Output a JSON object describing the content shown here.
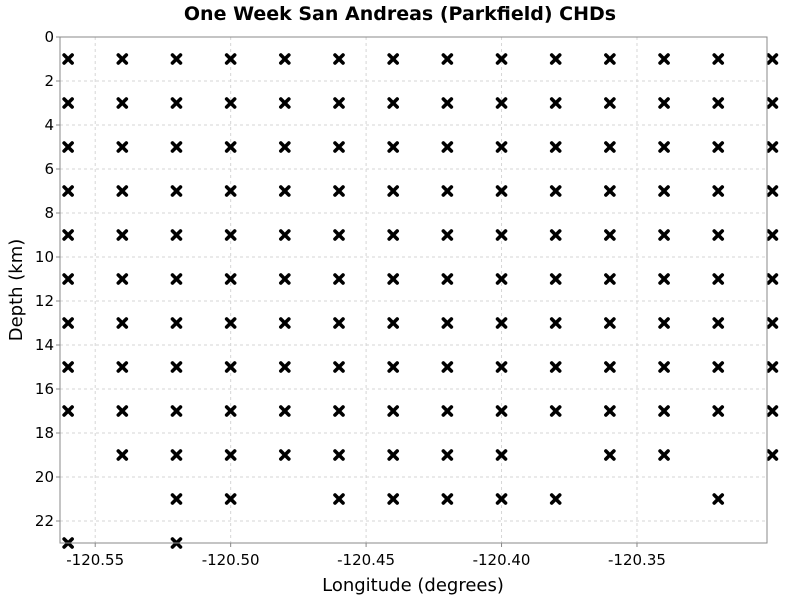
{
  "chart_data": {
    "type": "scatter",
    "title": "One Week San Andreas (Parkfield) CHDs",
    "xlabel": "Longitude (degrees)",
    "ylabel": "Depth (km)",
    "xlim": [
      -120.563,
      -120.302
    ],
    "ylim": [
      0,
      23
    ],
    "y_inverted": true,
    "grid": true,
    "x_ticks": [
      -120.55,
      -120.5,
      -120.45,
      -120.4,
      -120.35
    ],
    "x_tick_labels": [
      "-120.55",
      "-120.50",
      "-120.45",
      "-120.40",
      "-120.35"
    ],
    "y_ticks": [
      0,
      2,
      4,
      6,
      8,
      10,
      12,
      14,
      16,
      18,
      20,
      22
    ],
    "y_tick_labels": [
      "0",
      "2",
      "4",
      "6",
      "8",
      "10",
      "12",
      "14",
      "16",
      "18",
      "20",
      "22"
    ],
    "marker": "x",
    "marker_color": "#000000",
    "points": [
      [
        -120.56,
        1
      ],
      [
        -120.54,
        1
      ],
      [
        -120.52,
        1
      ],
      [
        -120.5,
        1
      ],
      [
        -120.48,
        1
      ],
      [
        -120.46,
        1
      ],
      [
        -120.44,
        1
      ],
      [
        -120.42,
        1
      ],
      [
        -120.4,
        1
      ],
      [
        -120.38,
        1
      ],
      [
        -120.36,
        1
      ],
      [
        -120.34,
        1
      ],
      [
        -120.32,
        1
      ],
      [
        -120.3,
        1
      ],
      [
        -120.56,
        3
      ],
      [
        -120.54,
        3
      ],
      [
        -120.52,
        3
      ],
      [
        -120.5,
        3
      ],
      [
        -120.48,
        3
      ],
      [
        -120.46,
        3
      ],
      [
        -120.44,
        3
      ],
      [
        -120.42,
        3
      ],
      [
        -120.4,
        3
      ],
      [
        -120.38,
        3
      ],
      [
        -120.36,
        3
      ],
      [
        -120.34,
        3
      ],
      [
        -120.32,
        3
      ],
      [
        -120.3,
        3
      ],
      [
        -120.56,
        5
      ],
      [
        -120.54,
        5
      ],
      [
        -120.52,
        5
      ],
      [
        -120.5,
        5
      ],
      [
        -120.48,
        5
      ],
      [
        -120.46,
        5
      ],
      [
        -120.44,
        5
      ],
      [
        -120.42,
        5
      ],
      [
        -120.4,
        5
      ],
      [
        -120.38,
        5
      ],
      [
        -120.36,
        5
      ],
      [
        -120.34,
        5
      ],
      [
        -120.32,
        5
      ],
      [
        -120.3,
        5
      ],
      [
        -120.56,
        7
      ],
      [
        -120.54,
        7
      ],
      [
        -120.52,
        7
      ],
      [
        -120.5,
        7
      ],
      [
        -120.48,
        7
      ],
      [
        -120.46,
        7
      ],
      [
        -120.44,
        7
      ],
      [
        -120.42,
        7
      ],
      [
        -120.4,
        7
      ],
      [
        -120.38,
        7
      ],
      [
        -120.36,
        7
      ],
      [
        -120.34,
        7
      ],
      [
        -120.32,
        7
      ],
      [
        -120.3,
        7
      ],
      [
        -120.56,
        9
      ],
      [
        -120.54,
        9
      ],
      [
        -120.52,
        9
      ],
      [
        -120.5,
        9
      ],
      [
        -120.48,
        9
      ],
      [
        -120.46,
        9
      ],
      [
        -120.44,
        9
      ],
      [
        -120.42,
        9
      ],
      [
        -120.4,
        9
      ],
      [
        -120.38,
        9
      ],
      [
        -120.36,
        9
      ],
      [
        -120.34,
        9
      ],
      [
        -120.32,
        9
      ],
      [
        -120.3,
        9
      ],
      [
        -120.56,
        11
      ],
      [
        -120.54,
        11
      ],
      [
        -120.52,
        11
      ],
      [
        -120.5,
        11
      ],
      [
        -120.48,
        11
      ],
      [
        -120.46,
        11
      ],
      [
        -120.44,
        11
      ],
      [
        -120.42,
        11
      ],
      [
        -120.4,
        11
      ],
      [
        -120.38,
        11
      ],
      [
        -120.36,
        11
      ],
      [
        -120.34,
        11
      ],
      [
        -120.32,
        11
      ],
      [
        -120.3,
        11
      ],
      [
        -120.56,
        13
      ],
      [
        -120.54,
        13
      ],
      [
        -120.52,
        13
      ],
      [
        -120.5,
        13
      ],
      [
        -120.48,
        13
      ],
      [
        -120.46,
        13
      ],
      [
        -120.44,
        13
      ],
      [
        -120.42,
        13
      ],
      [
        -120.4,
        13
      ],
      [
        -120.38,
        13
      ],
      [
        -120.36,
        13
      ],
      [
        -120.34,
        13
      ],
      [
        -120.32,
        13
      ],
      [
        -120.3,
        13
      ],
      [
        -120.56,
        15
      ],
      [
        -120.54,
        15
      ],
      [
        -120.52,
        15
      ],
      [
        -120.5,
        15
      ],
      [
        -120.48,
        15
      ],
      [
        -120.46,
        15
      ],
      [
        -120.44,
        15
      ],
      [
        -120.42,
        15
      ],
      [
        -120.4,
        15
      ],
      [
        -120.38,
        15
      ],
      [
        -120.36,
        15
      ],
      [
        -120.34,
        15
      ],
      [
        -120.32,
        15
      ],
      [
        -120.3,
        15
      ],
      [
        -120.56,
        17
      ],
      [
        -120.54,
        17
      ],
      [
        -120.52,
        17
      ],
      [
        -120.5,
        17
      ],
      [
        -120.48,
        17
      ],
      [
        -120.46,
        17
      ],
      [
        -120.44,
        17
      ],
      [
        -120.42,
        17
      ],
      [
        -120.4,
        17
      ],
      [
        -120.38,
        17
      ],
      [
        -120.36,
        17
      ],
      [
        -120.34,
        17
      ],
      [
        -120.32,
        17
      ],
      [
        -120.3,
        17
      ],
      [
        -120.54,
        19
      ],
      [
        -120.52,
        19
      ],
      [
        -120.5,
        19
      ],
      [
        -120.48,
        19
      ],
      [
        -120.46,
        19
      ],
      [
        -120.44,
        19
      ],
      [
        -120.42,
        19
      ],
      [
        -120.4,
        19
      ],
      [
        -120.36,
        19
      ],
      [
        -120.34,
        19
      ],
      [
        -120.3,
        19
      ],
      [
        -120.52,
        21
      ],
      [
        -120.5,
        21
      ],
      [
        -120.46,
        21
      ],
      [
        -120.44,
        21
      ],
      [
        -120.42,
        21
      ],
      [
        -120.4,
        21
      ],
      [
        -120.38,
        21
      ],
      [
        -120.32,
        21
      ],
      [
        -120.56,
        23
      ],
      [
        -120.52,
        23
      ]
    ]
  }
}
